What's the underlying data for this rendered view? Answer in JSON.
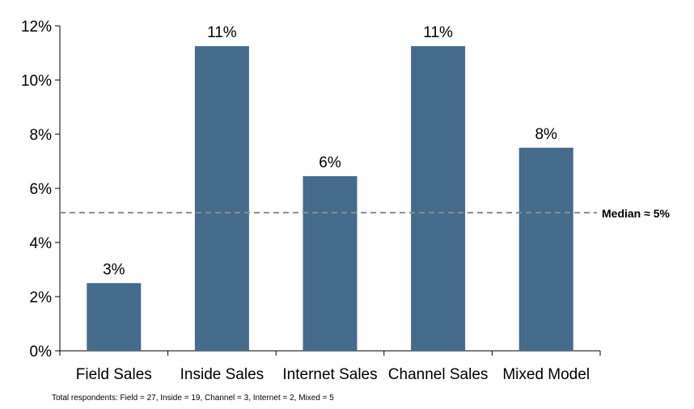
{
  "chart_data": {
    "type": "bar",
    "categories": [
      "Field Sales",
      "Inside Sales",
      "Internet Sales",
      "Channel Sales",
      "Mixed Model"
    ],
    "values": [
      2.5,
      11.25,
      6.45,
      11.25,
      7.5
    ],
    "data_labels": [
      "3%",
      "11%",
      "6%",
      "11%",
      "8%"
    ],
    "ylim": [
      0,
      12
    ],
    "y_ticks": [
      0,
      2,
      4,
      6,
      8,
      10,
      12
    ],
    "y_tick_labels": [
      "0%",
      "2%",
      "4%",
      "6%",
      "8%",
      "10%",
      "12%"
    ],
    "bar_color": "#456b8d",
    "reference_line": {
      "value": 5.1,
      "label": "Median  ≈ 5%",
      "color": "#8c8c8c",
      "style": "dashed"
    },
    "grid": false,
    "legend": "none"
  },
  "footnote": "Total respondents: Field = 27, Inside = 19, Channel = 3, Internet = 2, Mixed = 5"
}
